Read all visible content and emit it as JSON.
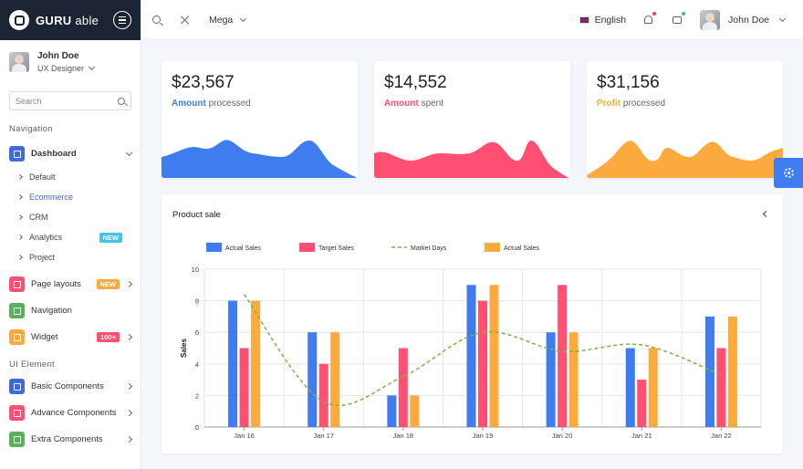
{
  "brand": {
    "name": "GURU",
    "name_suffix": "able"
  },
  "sidebar": {
    "profile": {
      "name": "John Doe",
      "role": "UX Designer"
    },
    "search": {
      "placeholder": "Search"
    },
    "captions": {
      "navigation": "Navigation",
      "ui_element": "UI Element"
    },
    "dashboard": {
      "label": "Dashboard",
      "icon": "home-icon"
    },
    "sub_items": [
      {
        "label": "Default"
      },
      {
        "label": "Ecommerce",
        "active": true
      },
      {
        "label": "CRM"
      },
      {
        "label": "Analytics",
        "badge": "NEW"
      },
      {
        "label": "Project"
      }
    ],
    "items": [
      {
        "label": "Page layouts",
        "badge": "NEW",
        "icon": "layout-icon",
        "color": "#ff4f73"
      },
      {
        "label": "Navigation",
        "icon": "navigation-icon",
        "color": "#5bb05d"
      },
      {
        "label": "Widget",
        "badge": "100+",
        "icon": "widget-icon",
        "color": "#fbab3d"
      }
    ],
    "ui_items": [
      {
        "label": "Basic Components",
        "icon": "grid-icon",
        "color": "#3f6ad8"
      },
      {
        "label": "Advance Components",
        "icon": "crown-icon",
        "color": "#ff4f73"
      },
      {
        "label": "Extra Components",
        "icon": "puzzle-icon",
        "color": "#5bb05d"
      }
    ]
  },
  "header": {
    "mega": "Mega",
    "language": "English",
    "user": "John Doe"
  },
  "stats": [
    {
      "value": "$23,567",
      "highlight": "Amount",
      "rest": "processed",
      "color": "#3f7cf0"
    },
    {
      "value": "$14,552",
      "highlight": "Amount",
      "rest": "spent",
      "color": "#ff4f73"
    },
    {
      "value": "$31,156",
      "highlight": "Profit",
      "rest": "processed",
      "color": "#fbab3d"
    }
  ],
  "chart_title": "Product sale",
  "chart_data": {
    "type": "bar",
    "categories": [
      "Jan 16",
      "Jan 17",
      "Jan 18",
      "Jan 19",
      "Jan 20",
      "Jan 21",
      "Jan 22"
    ],
    "ylabel": "Sales",
    "ylim": [
      0,
      10
    ],
    "yticks": [
      0,
      2,
      4,
      6,
      8,
      10
    ],
    "legend_position": "top",
    "grid": true,
    "series": [
      {
        "name": "Actual Sales",
        "type": "bar",
        "color": "#3f7cf0",
        "values": [
          8,
          6,
          2,
          9,
          6,
          5,
          7
        ]
      },
      {
        "name": "Target Sales",
        "type": "bar",
        "color": "#ff4f73",
        "values": [
          5,
          4,
          5,
          8,
          9,
          3,
          5
        ]
      },
      {
        "name": "Market Days",
        "type": "line",
        "dashed": true,
        "color": "#7cb342",
        "values": [
          8.4,
          1.6,
          3.2,
          6,
          4.8,
          5.2,
          3.3
        ]
      },
      {
        "name": "Actual Sales",
        "type": "bar",
        "color": "#fbab3d",
        "values": [
          8,
          6,
          2,
          9,
          6,
          5,
          7
        ]
      }
    ]
  }
}
